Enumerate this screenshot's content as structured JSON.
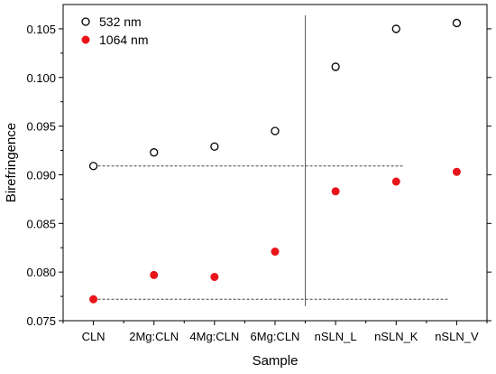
{
  "chart_data": {
    "type": "scatter",
    "categories": [
      "CLN",
      "2Mg:CLN",
      "4Mg:CLN",
      "6Mg:CLN",
      "nSLN_L",
      "nSLN_K",
      "nSLN_V"
    ],
    "series": [
      {
        "name": "532 nm",
        "marker": "open-circle",
        "color": "#000000",
        "values": [
          0.0909,
          0.0923,
          0.0929,
          0.0945,
          0.1011,
          0.105,
          0.1056
        ]
      },
      {
        "name": "1064 nm",
        "marker": "filled-circle",
        "color": "#e8141a",
        "values": [
          0.0772,
          0.0797,
          0.0795,
          0.0821,
          0.0883,
          0.0893,
          0.0903
        ]
      }
    ],
    "xlabel": "Sample",
    "ylabel": "Birefringence",
    "ylim": [
      0.075,
      0.1075
    ],
    "yticks": [
      "0.075",
      "0.080",
      "0.085",
      "0.090",
      "0.095",
      "0.100",
      "0.105"
    ],
    "grid": false,
    "legend": "top-left",
    "reference_lines": {
      "vertical_between": [
        "6Mg:CLN",
        "nSLN_L"
      ],
      "horizontal_dashed": [
        0.0909,
        0.0772
      ]
    }
  }
}
